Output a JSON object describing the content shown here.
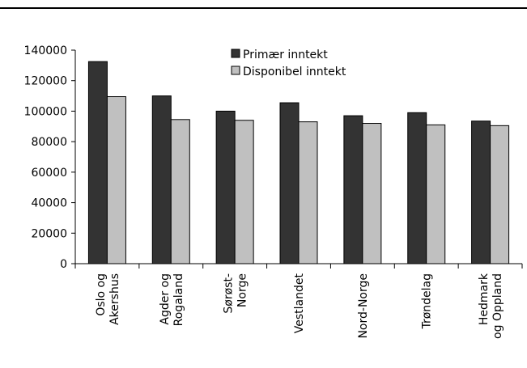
{
  "chart_data": {
    "type": "bar",
    "categories": [
      [
        "Oslo og",
        "Akershus"
      ],
      [
        "Agder og",
        "Rogaland"
      ],
      [
        "Sørøst-",
        "Norge"
      ],
      [
        "Vestlandet"
      ],
      [
        "Nord-Norge"
      ],
      [
        "Trøndelag"
      ],
      [
        "Hedmark",
        "og Oppland"
      ]
    ],
    "series": [
      {
        "name": "Primær inntekt",
        "color": "#333333",
        "values": [
          132500,
          110000,
          100000,
          105500,
          97000,
          99000,
          93500
        ]
      },
      {
        "name": "Disponibel inntekt",
        "color": "#c0c0c0",
        "values": [
          109500,
          94500,
          94000,
          93000,
          92000,
          91000,
          90500
        ]
      }
    ],
    "ylim": [
      0,
      140000
    ],
    "yticks": [
      0,
      20000,
      40000,
      60000,
      80000,
      100000,
      120000,
      140000
    ],
    "legend_position": "top-center",
    "grid": false
  }
}
